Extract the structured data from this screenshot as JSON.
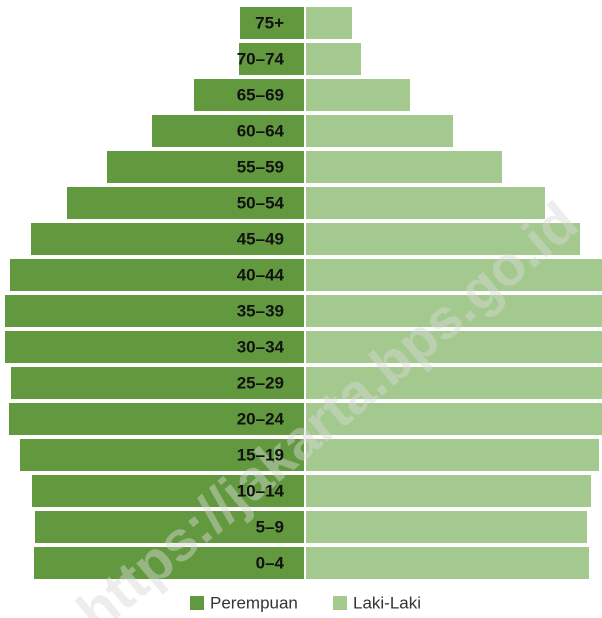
{
  "chart_data": {
    "type": "population-pyramid",
    "categories": [
      "75+",
      "70–74",
      "65–69",
      "60–64",
      "55–59",
      "50–54",
      "45–49",
      "40–44",
      "35–39",
      "30–34",
      "25–29",
      "20–24",
      "15–19",
      "10–14",
      "5–9",
      "0–4"
    ],
    "series": [
      {
        "name": "Perempuan",
        "color": "#62993e",
        "values": [
          64,
          65,
          110,
          152,
          197,
          237,
          273,
          294,
          299,
          299,
          293,
          295,
          284,
          272,
          269,
          270
        ]
      },
      {
        "name": "Laki-Laki",
        "color": "#a3c98e",
        "values": [
          46,
          55,
          104,
          147,
          196,
          239,
          274,
          296,
          296,
          296,
          296,
          296,
          293,
          285,
          281,
          283
        ]
      }
    ],
    "annotations": [
      "https://jakarta.bps.go.id"
    ]
  }
}
